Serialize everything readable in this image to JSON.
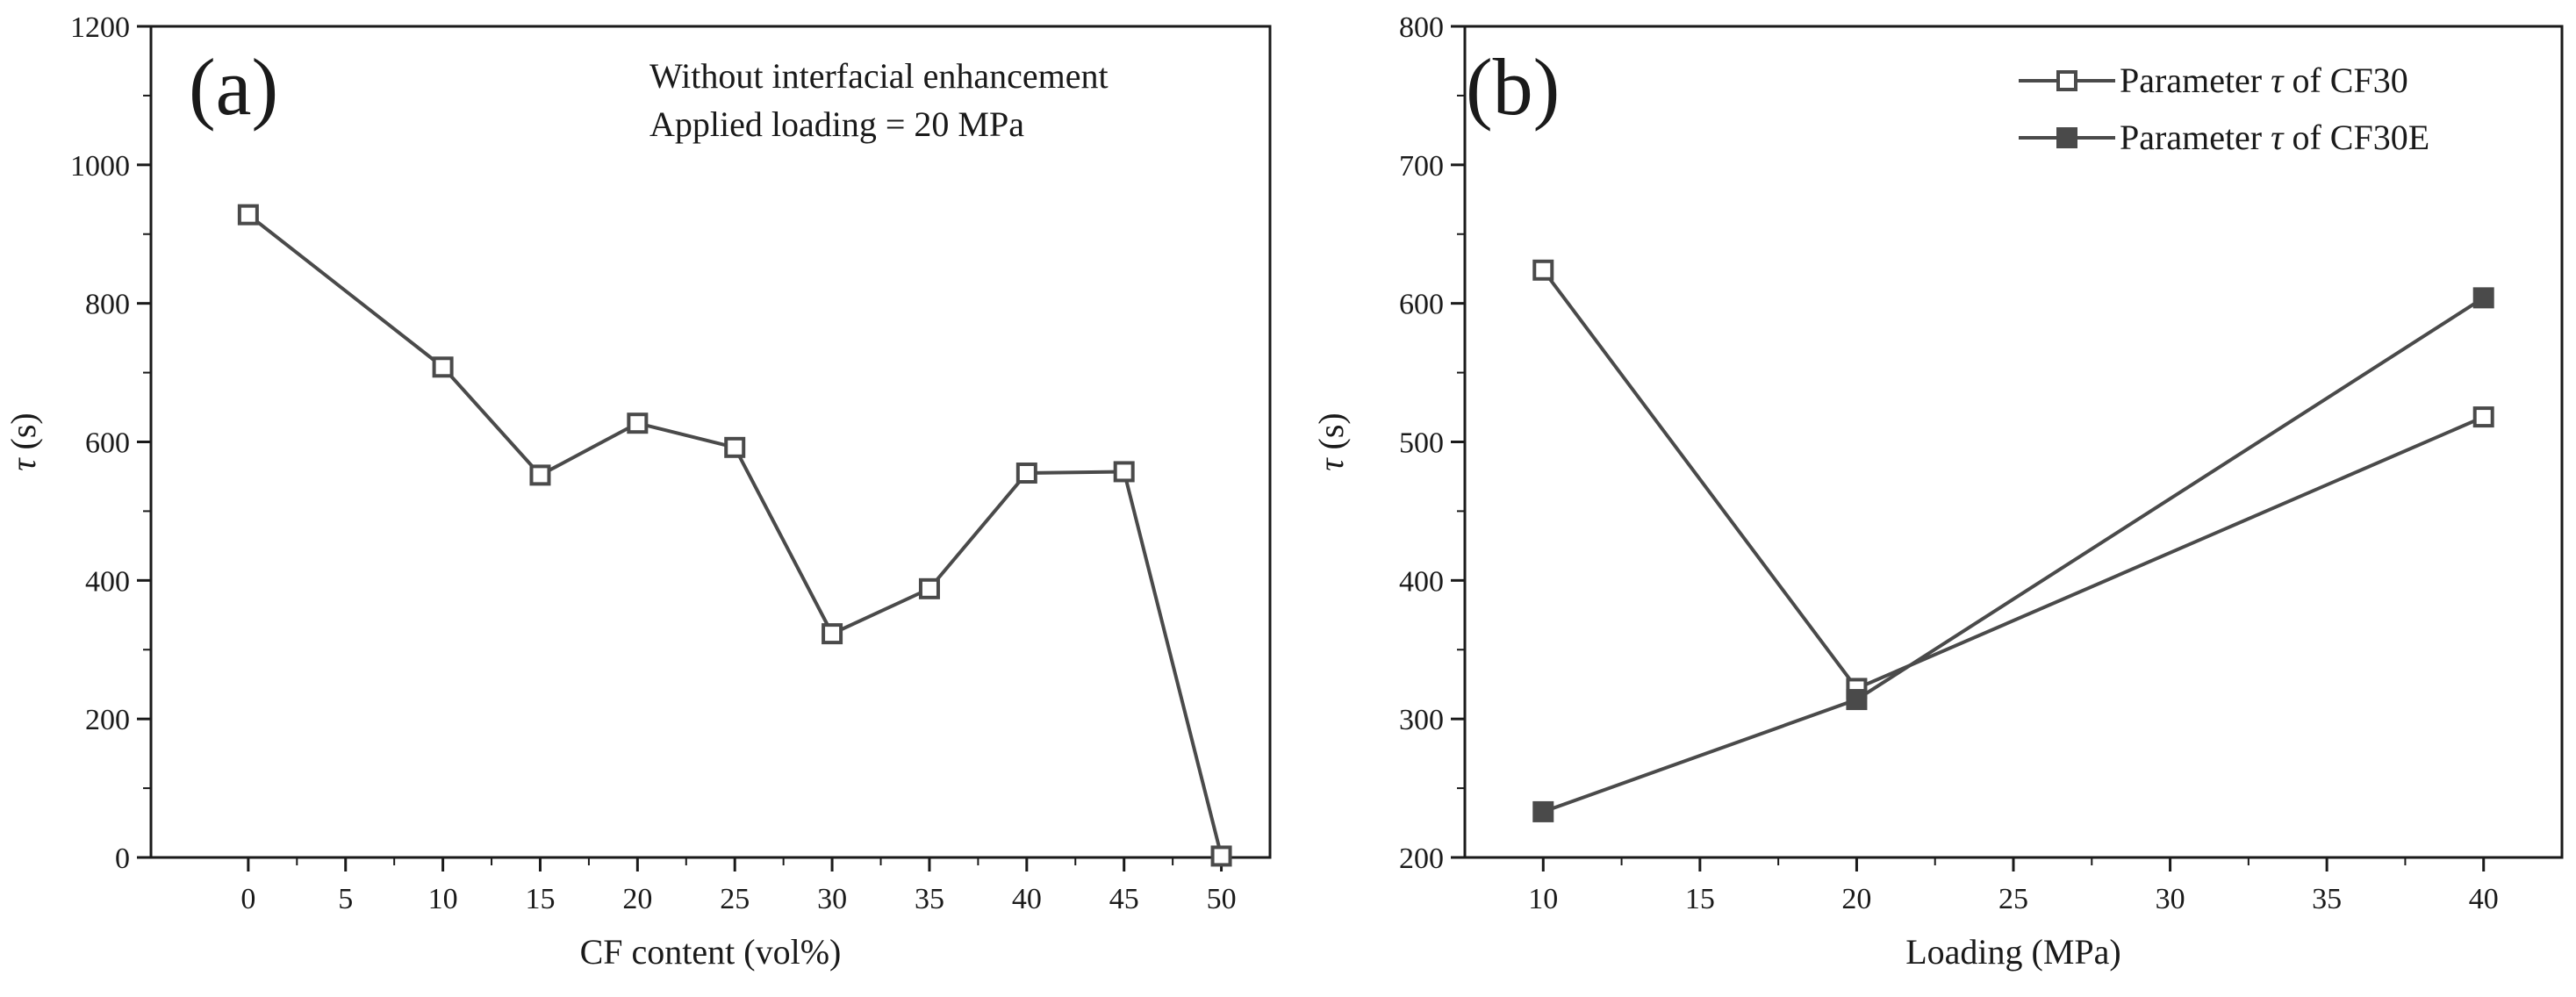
{
  "colors": {
    "line": "#4a4a4a",
    "axis": "#1a1a1a",
    "marker_open_fill": "#ffffff",
    "marker_filled": "#4a4a4a",
    "background": "#ffffff"
  },
  "chart_data": [
    {
      "type": "line",
      "panel_label": "(a)",
      "title": "",
      "xlabel": "CF content (vol%)",
      "ylabel_symbol": "τ",
      "ylabel_unit": "(s)",
      "xlim": [
        -5,
        52.5
      ],
      "ylim": [
        0,
        1200
      ],
      "xticks": [
        0,
        5,
        10,
        15,
        20,
        25,
        30,
        35,
        40,
        45,
        50
      ],
      "yticks": [
        0,
        200,
        400,
        600,
        800,
        1000,
        1200
      ],
      "annotations": [
        "Without interfacial enhancement",
        "Applied loading = 20 MPa"
      ],
      "series": [
        {
          "name": "τ",
          "marker": "open-square",
          "x": [
            0,
            10,
            15,
            20,
            25,
            30,
            35,
            40,
            45,
            50
          ],
          "y": [
            928,
            708,
            552,
            627,
            592,
            323,
            388,
            555,
            557,
            2
          ]
        }
      ]
    },
    {
      "type": "line",
      "panel_label": "(b)",
      "title": "",
      "xlabel": "Loading (MPa)",
      "ylabel_symbol": "τ",
      "ylabel_unit": "(s)",
      "xlim": [
        7.5,
        42.5
      ],
      "ylim": [
        200,
        800
      ],
      "xticks": [
        10,
        15,
        20,
        25,
        30,
        35,
        40
      ],
      "yticks": [
        200,
        300,
        400,
        500,
        600,
        700,
        800
      ],
      "legend_position": "top-right",
      "series": [
        {
          "name": "Parameter τ of CF30",
          "legend_prefix": "Parameter",
          "legend_symbol": "τ",
          "legend_suffix": "of CF30",
          "marker": "open-square",
          "x": [
            10,
            20,
            40
          ],
          "y": [
            624,
            322,
            518
          ]
        },
        {
          "name": "Parameter τ of CF30E",
          "legend_prefix": "Parameter",
          "legend_symbol": "τ",
          "legend_suffix": "of CF30E",
          "marker": "filled-square",
          "x": [
            10,
            20,
            40
          ],
          "y": [
            233,
            314,
            604
          ]
        }
      ]
    }
  ]
}
